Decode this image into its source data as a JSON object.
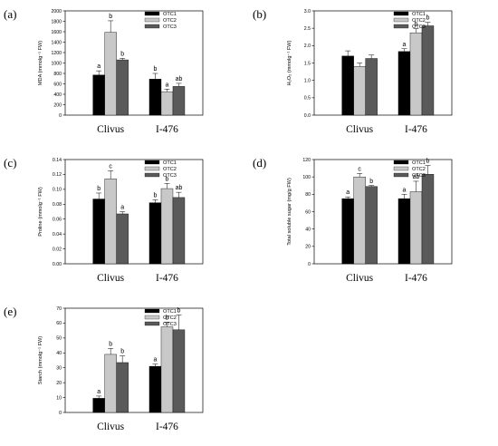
{
  "legend": [
    "OTC1",
    "OTC2",
    "OTC3"
  ],
  "colors": {
    "OTC1": "#000000",
    "OTC2": "#c8c8c8",
    "OTC3": "#5a5a5a"
  },
  "chart_data": [
    {
      "id": "a",
      "type": "bar",
      "panel_label": "(a)",
      "ylabel": "MDA (mmolg⁻¹ FW)",
      "ylim": [
        0,
        2000
      ],
      "yticks": [
        0,
        200,
        400,
        600,
        800,
        1000,
        1200,
        1400,
        1600,
        1800,
        2000
      ],
      "categories": [
        "Clivus",
        "I-476"
      ],
      "series": [
        {
          "name": "OTC1",
          "values": [
            770,
            690
          ],
          "errors": [
            80,
            110
          ],
          "letters": [
            "a",
            "b"
          ]
        },
        {
          "name": "OTC2",
          "values": [
            1590,
            450
          ],
          "errors": [
            220,
            50
          ],
          "letters": [
            "b",
            "a"
          ]
        },
        {
          "name": "OTC3",
          "values": [
            1060,
            550
          ],
          "errors": [
            30,
            60
          ],
          "letters": [
            "b",
            "ab"
          ]
        }
      ]
    },
    {
      "id": "b",
      "type": "bar",
      "panel_label": "(b)",
      "ylabel": "H₂O₂ (mmolg⁻¹ FW)",
      "ylim": [
        0,
        3.0
      ],
      "yticks": [
        0,
        0.5,
        1.0,
        1.5,
        2.0,
        2.5,
        3.0
      ],
      "categories": [
        "Clivus",
        "I-476"
      ],
      "series": [
        {
          "name": "OTC1",
          "values": [
            1.7,
            1.83
          ],
          "errors": [
            0.15,
            0.08
          ],
          "letters": [
            "",
            "a"
          ]
        },
        {
          "name": "OTC2",
          "values": [
            1.4,
            2.37
          ],
          "errors": [
            0.1,
            0.12
          ],
          "letters": [
            "",
            "b"
          ]
        },
        {
          "name": "OTC3",
          "values": [
            1.63,
            2.57
          ],
          "errors": [
            0.1,
            0.1
          ],
          "letters": [
            "",
            "b"
          ]
        }
      ]
    },
    {
      "id": "c",
      "type": "bar",
      "panel_label": "(c)",
      "ylabel": "Proline (mmolg⁻¹ FW)",
      "ylim": [
        0,
        0.14
      ],
      "yticks": [
        0,
        0.02,
        0.04,
        0.06,
        0.08,
        0.1,
        0.12,
        0.14
      ],
      "categories": [
        "Clivus",
        "I-476"
      ],
      "series": [
        {
          "name": "OTC1",
          "values": [
            0.087,
            0.082
          ],
          "errors": [
            0.008,
            0.004
          ],
          "letters": [
            "b",
            "b"
          ]
        },
        {
          "name": "OTC2",
          "values": [
            0.114,
            0.101
          ],
          "errors": [
            0.011,
            0.007
          ],
          "letters": [
            "c",
            "b"
          ]
        },
        {
          "name": "OTC3",
          "values": [
            0.067,
            0.089
          ],
          "errors": [
            0.003,
            0.007
          ],
          "letters": [
            "a",
            "ab"
          ]
        }
      ]
    },
    {
      "id": "d",
      "type": "bar",
      "panel_label": "(d)",
      "ylabel": "Total soluble sugar (mg/g FW)",
      "ylim": [
        0,
        120
      ],
      "yticks": [
        0,
        20,
        40,
        60,
        80,
        100,
        120
      ],
      "categories": [
        "Clivus",
        "I-476"
      ],
      "series": [
        {
          "name": "OTC1",
          "values": [
            75,
            75
          ],
          "errors": [
            2,
            5
          ],
          "letters": [
            "a",
            "a"
          ]
        },
        {
          "name": "OTC2",
          "values": [
            100,
            83
          ],
          "errors": [
            4,
            12
          ],
          "letters": [
            "c",
            "ab"
          ]
        },
        {
          "name": "OTC3",
          "values": [
            89,
            103
          ],
          "errors": [
            1,
            10
          ],
          "letters": [
            "b",
            "b"
          ]
        }
      ]
    },
    {
      "id": "e",
      "type": "bar",
      "panel_label": "(e)",
      "ylabel": "Starch (mmolg⁻¹ FW)",
      "ylim": [
        0,
        70
      ],
      "yticks": [
        0,
        10,
        20,
        30,
        40,
        50,
        60,
        70
      ],
      "categories": [
        "Clivus",
        "I-476"
      ],
      "series": [
        {
          "name": "OTC1",
          "values": [
            9.5,
            31
          ],
          "errors": [
            1.5,
            1.5
          ],
          "letters": [
            "a",
            "a"
          ]
        },
        {
          "name": "OTC2",
          "values": [
            39,
            57.5
          ],
          "errors": [
            4,
            3
          ],
          "letters": [
            "b",
            "b"
          ]
        },
        {
          "name": "OTC3",
          "values": [
            33.5,
            55.5
          ],
          "errors": [
            4.5,
            10
          ],
          "letters": [
            "b",
            "b"
          ]
        }
      ]
    }
  ]
}
